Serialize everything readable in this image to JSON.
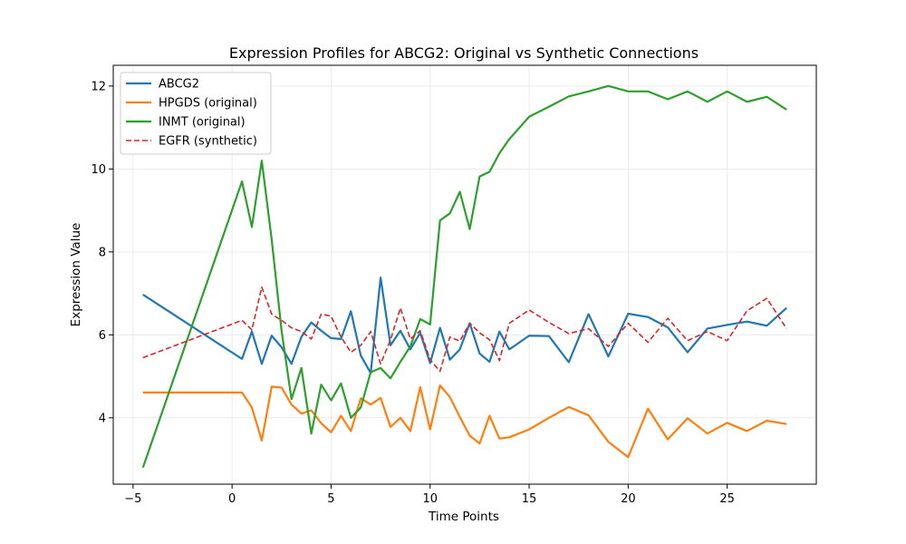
{
  "chart_data": {
    "type": "line",
    "title": "Expression Profiles for ABCG2: Original vs Synthetic Connections",
    "xlabel": "Time Points",
    "ylabel": "Expression Value",
    "xlim": [
      -6,
      29.5
    ],
    "ylim": [
      2.4,
      12.5
    ],
    "xticks": [
      -5,
      0,
      5,
      10,
      15,
      20,
      25
    ],
    "yticks": [
      4,
      6,
      8,
      10,
      12
    ],
    "grid": true,
    "legend_position": "top-left",
    "series": [
      {
        "name": "ABCG2",
        "color": "#1f77b4",
        "dash": "solid",
        "x": [
          -4.5,
          0.5,
          1,
          1.5,
          2,
          2.5,
          3,
          3.5,
          4,
          4.5,
          5,
          5.5,
          6,
          6.5,
          7,
          7.5,
          8,
          8.5,
          9,
          9.5,
          10,
          10.5,
          11,
          11.5,
          12,
          12.5,
          13,
          13.5,
          14,
          15,
          16,
          17,
          18,
          19,
          20,
          21,
          22,
          23,
          24,
          25,
          26,
          27,
          28
        ],
        "y": [
          6.97,
          5.42,
          6.08,
          5.3,
          5.98,
          5.7,
          5.3,
          5.95,
          6.3,
          6.1,
          5.92,
          5.9,
          6.57,
          5.5,
          5.08,
          7.38,
          5.75,
          6.1,
          5.65,
          6.05,
          5.32,
          6.17,
          5.4,
          5.65,
          6.28,
          5.55,
          5.35,
          6.08,
          5.65,
          5.98,
          5.97,
          5.34,
          6.5,
          5.48,
          6.51,
          6.43,
          6.18,
          5.58,
          6.15,
          6.24,
          6.32,
          6.22,
          6.65
        ]
      },
      {
        "name": "HPGDS (original)",
        "color": "#ff7f0e",
        "dash": "solid",
        "x": [
          -4.5,
          0.5,
          1,
          1.5,
          2,
          2.5,
          3,
          3.5,
          4,
          4.5,
          5,
          5.5,
          6,
          6.5,
          7,
          7.5,
          8,
          8.5,
          9,
          9.5,
          10,
          10.5,
          11,
          11.5,
          12,
          12.5,
          13,
          13.5,
          14,
          15,
          16,
          17,
          18,
          19,
          20,
          21,
          22,
          23,
          24,
          25,
          26,
          27,
          28
        ],
        "y": [
          4.61,
          4.61,
          4.25,
          3.45,
          4.75,
          4.73,
          4.32,
          4.1,
          4.18,
          3.87,
          3.65,
          4.05,
          3.68,
          4.47,
          4.32,
          4.48,
          3.78,
          4.0,
          3.68,
          4.74,
          3.72,
          4.78,
          4.5,
          4.02,
          3.57,
          3.38,
          4.05,
          3.5,
          3.53,
          3.72,
          4.0,
          4.26,
          4.06,
          3.42,
          3.05,
          4.22,
          3.48,
          3.99,
          3.62,
          3.88,
          3.68,
          3.93,
          3.85
        ]
      },
      {
        "name": "INMT (original)",
        "color": "#2ca02c",
        "dash": "solid",
        "x": [
          -4.5,
          0.5,
          1,
          1.5,
          2,
          2.5,
          3,
          3.5,
          4,
          4.5,
          5,
          5.5,
          6,
          6.5,
          7,
          7.5,
          8,
          8.5,
          9,
          9.5,
          10,
          10.5,
          11,
          11.5,
          12,
          12.5,
          13,
          13.5,
          14,
          15,
          16,
          17,
          18,
          19,
          20,
          21,
          22,
          23,
          24,
          25,
          26,
          27,
          28
        ],
        "y": [
          2.8,
          9.7,
          8.6,
          10.2,
          8.3,
          6.1,
          4.45,
          5.2,
          3.62,
          4.8,
          4.42,
          4.83,
          4.0,
          4.25,
          5.1,
          5.2,
          4.95,
          5.35,
          5.72,
          6.38,
          6.25,
          8.76,
          8.93,
          9.45,
          8.55,
          9.82,
          9.93,
          10.38,
          10.72,
          11.26,
          11.5,
          11.75,
          11.87,
          12.0,
          11.87,
          11.87,
          11.68,
          11.87,
          11.62,
          11.87,
          11.62,
          11.74,
          11.43
        ]
      },
      {
        "name": "EGFR (synthetic)",
        "color": "#d62728",
        "dash": "dashed",
        "x": [
          -4.5,
          0.5,
          1,
          1.5,
          2,
          2.5,
          3,
          3.5,
          4,
          4.5,
          5,
          5.5,
          6,
          6.5,
          7,
          7.5,
          8,
          8.5,
          9,
          9.5,
          10,
          10.5,
          11,
          11.5,
          12,
          12.5,
          13,
          13.5,
          14,
          15,
          16,
          17,
          18,
          19,
          20,
          21,
          22,
          23,
          24,
          25,
          26,
          27,
          28
        ],
        "y": [
          5.45,
          6.35,
          6.12,
          7.15,
          6.5,
          6.35,
          6.17,
          6.08,
          5.9,
          6.5,
          6.45,
          5.95,
          5.58,
          5.75,
          6.08,
          5.3,
          5.88,
          6.65,
          5.9,
          6.1,
          5.4,
          5.12,
          5.95,
          5.85,
          6.28,
          6.05,
          5.88,
          5.38,
          6.28,
          6.6,
          6.3,
          6.03,
          6.15,
          5.72,
          6.28,
          5.82,
          6.4,
          5.86,
          6.08,
          5.86,
          6.58,
          6.88,
          6.15
        ]
      }
    ]
  }
}
